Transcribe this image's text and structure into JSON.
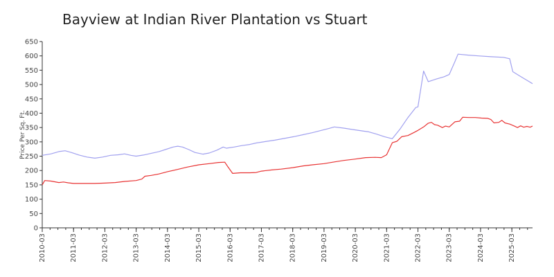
{
  "chart_data": {
    "type": "line",
    "title": "Bayview at Indian River Plantation vs Stuart",
    "xlabel": "",
    "ylabel": "Price Per Sq. Ft.",
    "ylim": [
      0,
      650
    ],
    "yticks": [
      0,
      50,
      100,
      150,
      200,
      250,
      300,
      350,
      400,
      450,
      500,
      550,
      600,
      650
    ],
    "xrange": [
      2010.17,
      2025.83
    ],
    "xticks": [
      {
        "x": 2010.17,
        "label": "2010-03"
      },
      {
        "x": 2011.17,
        "label": "2011-03"
      },
      {
        "x": 2012.17,
        "label": "2012-03"
      },
      {
        "x": 2013.17,
        "label": "2013-03"
      },
      {
        "x": 2014.17,
        "label": "2014-03"
      },
      {
        "x": 2015.17,
        "label": "2015-03"
      },
      {
        "x": 2016.17,
        "label": "2016-03"
      },
      {
        "x": 2017.17,
        "label": "2017-03"
      },
      {
        "x": 2018.17,
        "label": "2018-03"
      },
      {
        "x": 2019.17,
        "label": "2019-03"
      },
      {
        "x": 2020.17,
        "label": "2020-03"
      },
      {
        "x": 2021.17,
        "label": "2021-03"
      },
      {
        "x": 2022.17,
        "label": "2022-03"
      },
      {
        "x": 2023.17,
        "label": "2023-03"
      },
      {
        "x": 2024.17,
        "label": "2024-03"
      },
      {
        "x": 2025.17,
        "label": "2025-03"
      }
    ],
    "series": [
      {
        "name": "Bayview at Indian River Plantation",
        "color": "#a0a0ef",
        "points": [
          [
            2010.17,
            253
          ],
          [
            2010.45,
            258
          ],
          [
            2010.7,
            266
          ],
          [
            2010.9,
            269
          ],
          [
            2011.1,
            263
          ],
          [
            2011.35,
            254
          ],
          [
            2011.6,
            247
          ],
          [
            2011.85,
            243
          ],
          [
            2012.1,
            247
          ],
          [
            2012.35,
            253
          ],
          [
            2012.6,
            255
          ],
          [
            2012.8,
            258
          ],
          [
            2013.0,
            253
          ],
          [
            2013.17,
            250
          ],
          [
            2013.4,
            254
          ],
          [
            2013.65,
            260
          ],
          [
            2013.9,
            266
          ],
          [
            2014.1,
            273
          ],
          [
            2014.35,
            282
          ],
          [
            2014.5,
            285
          ],
          [
            2014.65,
            282
          ],
          [
            2014.85,
            273
          ],
          [
            2015.05,
            263
          ],
          [
            2015.3,
            257
          ],
          [
            2015.5,
            261
          ],
          [
            2015.75,
            271
          ],
          [
            2015.95,
            282
          ],
          [
            2016.05,
            278
          ],
          [
            2016.3,
            282
          ],
          [
            2016.55,
            287
          ],
          [
            2016.8,
            291
          ],
          [
            2017.0,
            296
          ],
          [
            2017.3,
            301
          ],
          [
            2017.6,
            306
          ],
          [
            2017.9,
            312
          ],
          [
            2018.2,
            318
          ],
          [
            2018.5,
            325
          ],
          [
            2018.8,
            332
          ],
          [
            2019.05,
            339
          ],
          [
            2019.3,
            346
          ],
          [
            2019.5,
            352
          ],
          [
            2019.8,
            348
          ],
          [
            2020.1,
            343
          ],
          [
            2020.4,
            338
          ],
          [
            2020.6,
            335
          ],
          [
            2020.85,
            327
          ],
          [
            2021.1,
            318
          ],
          [
            2021.35,
            311
          ],
          [
            2021.6,
            345
          ],
          [
            2021.85,
            385
          ],
          [
            2022.1,
            420
          ],
          [
            2022.17,
            422
          ],
          [
            2022.35,
            547
          ],
          [
            2022.5,
            510
          ],
          [
            2022.75,
            519
          ],
          [
            2023.0,
            527
          ],
          [
            2023.17,
            535
          ],
          [
            2023.35,
            580
          ],
          [
            2023.45,
            606
          ],
          [
            2023.75,
            603
          ],
          [
            2024.1,
            600
          ],
          [
            2024.5,
            597
          ],
          [
            2024.9,
            595
          ],
          [
            2025.1,
            590
          ],
          [
            2025.2,
            545
          ],
          [
            2025.45,
            528
          ],
          [
            2025.83,
            503
          ]
        ]
      },
      {
        "name": "Stuart",
        "color": "#e83232",
        "points": [
          [
            2010.17,
            150
          ],
          [
            2010.25,
            165
          ],
          [
            2010.45,
            163
          ],
          [
            2010.7,
            158
          ],
          [
            2010.85,
            160
          ],
          [
            2011.0,
            157
          ],
          [
            2011.17,
            155
          ],
          [
            2011.5,
            155
          ],
          [
            2011.85,
            155
          ],
          [
            2012.17,
            156
          ],
          [
            2012.5,
            158
          ],
          [
            2012.8,
            162
          ],
          [
            2013.17,
            165
          ],
          [
            2013.35,
            170
          ],
          [
            2013.45,
            180
          ],
          [
            2013.65,
            183
          ],
          [
            2013.9,
            188
          ],
          [
            2014.17,
            196
          ],
          [
            2014.5,
            204
          ],
          [
            2014.8,
            212
          ],
          [
            2015.17,
            220
          ],
          [
            2015.5,
            224
          ],
          [
            2015.8,
            228
          ],
          [
            2016.0,
            229
          ],
          [
            2016.1,
            213
          ],
          [
            2016.25,
            190
          ],
          [
            2016.5,
            192
          ],
          [
            2016.8,
            192
          ],
          [
            2017.0,
            193
          ],
          [
            2017.17,
            198
          ],
          [
            2017.5,
            202
          ],
          [
            2017.8,
            205
          ],
          [
            2018.17,
            210
          ],
          [
            2018.5,
            216
          ],
          [
            2018.8,
            220
          ],
          [
            2019.17,
            224
          ],
          [
            2019.5,
            230
          ],
          [
            2019.8,
            235
          ],
          [
            2020.17,
            240
          ],
          [
            2020.5,
            245
          ],
          [
            2020.8,
            246
          ],
          [
            2021.0,
            245
          ],
          [
            2021.17,
            255
          ],
          [
            2021.35,
            297
          ],
          [
            2021.5,
            302
          ],
          [
            2021.65,
            318
          ],
          [
            2021.85,
            322
          ],
          [
            2022.05,
            333
          ],
          [
            2022.17,
            340
          ],
          [
            2022.35,
            352
          ],
          [
            2022.5,
            365
          ],
          [
            2022.6,
            368
          ],
          [
            2022.7,
            360
          ],
          [
            2022.8,
            358
          ],
          [
            2022.95,
            350
          ],
          [
            2023.05,
            355
          ],
          [
            2023.17,
            352
          ],
          [
            2023.35,
            370
          ],
          [
            2023.5,
            372
          ],
          [
            2023.6,
            386
          ],
          [
            2023.8,
            385
          ],
          [
            2024.0,
            385
          ],
          [
            2024.2,
            383
          ],
          [
            2024.4,
            382
          ],
          [
            2024.5,
            378
          ],
          [
            2024.6,
            366
          ],
          [
            2024.75,
            368
          ],
          [
            2024.85,
            375
          ],
          [
            2024.95,
            366
          ],
          [
            2025.1,
            362
          ],
          [
            2025.25,
            355
          ],
          [
            2025.35,
            350
          ],
          [
            2025.45,
            356
          ],
          [
            2025.55,
            351
          ],
          [
            2025.65,
            354
          ],
          [
            2025.75,
            351
          ],
          [
            2025.83,
            355
          ]
        ]
      }
    ]
  }
}
